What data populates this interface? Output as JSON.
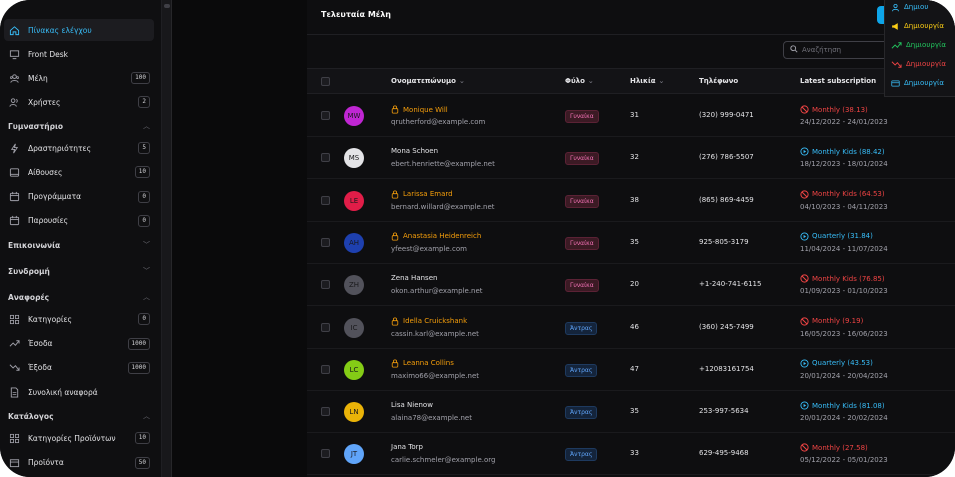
{
  "sidebar": {
    "items": [
      {
        "label": "Πίνακας ελέγχου",
        "icon": "home-icon",
        "active": true,
        "top": 19
      },
      {
        "label": "Front Desk",
        "icon": "monitor-icon",
        "top": 43
      },
      {
        "label": "Μέλη",
        "icon": "members-icon",
        "badge": "100",
        "top": 67
      },
      {
        "label": "Χρήστες",
        "icon": "users-icon",
        "badge": "2",
        "top": 91
      }
    ],
    "sections": [
      {
        "label": "Γυμναστήριο",
        "chevron": "up",
        "items": [
          {
            "label": "Δραστηριότητες",
            "icon": "activity-icon",
            "badge": "5"
          },
          {
            "label": "Αίθουσες",
            "icon": "room-icon",
            "badge": "10"
          },
          {
            "label": "Προγράμματα",
            "icon": "calendar-icon",
            "badge": "0"
          },
          {
            "label": "Παρουσίες",
            "icon": "calendar-icon",
            "badge": "0"
          }
        ]
      },
      {
        "label": "Επικοινωνία",
        "chevron": "down",
        "items": []
      },
      {
        "label": "Συνδρομή",
        "chevron": "down",
        "items": []
      },
      {
        "label": "Αναφορές",
        "chevron": "up",
        "items": [
          {
            "label": "Κατηγορίες",
            "icon": "grid-icon",
            "badge": "0"
          },
          {
            "label": "Έσοδα",
            "icon": "trend-up-icon",
            "badge": "1000"
          },
          {
            "label": "Έξοδα",
            "icon": "trend-down-icon",
            "badge": "1000"
          },
          {
            "label": "Συνολική αναφορά",
            "icon": "report-icon"
          }
        ]
      },
      {
        "label": "Κατάλογος",
        "chevron": "up",
        "items": [
          {
            "label": "Κατηγορίες Προϊόντων",
            "icon": "grid-icon",
            "badge": "10"
          },
          {
            "label": "Προϊόντα",
            "icon": "box-icon",
            "badge": "50"
          }
        ]
      }
    ]
  },
  "main": {
    "title": "Τελευταία Μέλη",
    "search_placeholder": "Αναζήτηση"
  },
  "table": {
    "headers": {
      "name": "Ονοματεπώνυμο",
      "gender": "Φύλο",
      "age": "Ηλικία",
      "phone": "Τηλέφωνο",
      "subscription": "Latest subscription"
    },
    "rows": [
      {
        "initials": "MW",
        "avatar_color": "#c026d3",
        "name": "Monique Will",
        "locked": true,
        "email": "qrutherford@example.com",
        "gender": "Γυναίκα",
        "g": "f",
        "age": "31",
        "phone": "(320) 999-0471",
        "sub": "Monthly (38.13)",
        "sub_status": "expired",
        "dates": "24/12/2022 - 24/01/2023"
      },
      {
        "initials": "MS",
        "avatar_color": "#e4e4e7",
        "name": "Mona Schoen",
        "locked": false,
        "email": "ebert.henriette@example.net",
        "gender": "Γυναίκα",
        "g": "f",
        "age": "32",
        "phone": "(276) 786-5507",
        "sub": "Monthly Kids (88.42)",
        "sub_status": "active",
        "dates": "18/12/2023 - 18/01/2024"
      },
      {
        "initials": "LE",
        "avatar_color": "#e11d48",
        "name": "Larissa Emard",
        "locked": true,
        "email": "bernard.willard@example.net",
        "gender": "Γυναίκα",
        "g": "f",
        "age": "38",
        "phone": "(865) 869-4459",
        "sub": "Monthly Kids (64.53)",
        "sub_status": "expired",
        "dates": "04/10/2023 - 04/11/2023"
      },
      {
        "initials": "AH",
        "avatar_color": "#1e40af",
        "name": "Anastasia Heidenreich",
        "locked": true,
        "email": "yfeest@example.com",
        "gender": "Γυναίκα",
        "g": "f",
        "age": "35",
        "phone": "925-805-3179",
        "sub": "Quarterly (31.84)",
        "sub_status": "active",
        "dates": "11/04/2024 - 11/07/2024"
      },
      {
        "initials": "ZH",
        "avatar_color": "#52525b",
        "name": "Zena Hansen",
        "locked": false,
        "email": "okon.arthur@example.net",
        "gender": "Γυναίκα",
        "g": "f",
        "age": "20",
        "phone": "+1-240-741-6115",
        "sub": "Monthly Kids (76.85)",
        "sub_status": "expired",
        "dates": "01/09/2023 - 01/10/2023"
      },
      {
        "initials": "IC",
        "avatar_color": "#52525b",
        "name": "Idella Cruickshank",
        "locked": true,
        "email": "cassin.karl@example.net",
        "gender": "Άντρας",
        "g": "m",
        "age": "46",
        "phone": "(360) 245-7499",
        "sub": "Monthly (9.19)",
        "sub_status": "expired",
        "dates": "16/05/2023 - 16/06/2023"
      },
      {
        "initials": "LC",
        "avatar_color": "#84cc16",
        "name": "Leanna Collins",
        "locked": true,
        "email": "maximo66@example.net",
        "gender": "Άντρας",
        "g": "m",
        "age": "47",
        "phone": "+12083161754",
        "sub": "Quarterly (43.53)",
        "sub_status": "active",
        "dates": "20/01/2024 - 20/04/2024"
      },
      {
        "initials": "LN",
        "avatar_color": "#eab308",
        "name": "Lisa Nienow",
        "locked": false,
        "email": "alaina78@example.net",
        "gender": "Άντρας",
        "g": "m",
        "age": "35",
        "phone": "253-997-5634",
        "sub": "Monthly Kids (81.08)",
        "sub_status": "active",
        "dates": "20/01/2024 - 20/02/2024"
      },
      {
        "initials": "JT",
        "avatar_color": "#60a5fa",
        "name": "Jana Torp",
        "locked": false,
        "email": "carlie.schmeler@example.org",
        "gender": "Άντρας",
        "g": "m",
        "age": "33",
        "phone": "629-495-9468",
        "sub": "Monthly (27.58)",
        "sub_status": "expired",
        "dates": "05/12/2022 - 05/01/2023"
      }
    ]
  },
  "dropdown": {
    "items": [
      {
        "label": "Δημιου",
        "icon": "user-icon",
        "color": "#38bdf8"
      },
      {
        "label": "Δημιουργία",
        "icon": "megaphone-icon",
        "color": "#facc15"
      },
      {
        "label": "Δημιουργία",
        "icon": "trend-up-icon",
        "color": "#22c55e"
      },
      {
        "label": "Δημιουργία",
        "icon": "trend-down-icon",
        "color": "#ef4444"
      },
      {
        "label": "Δημιουργία",
        "icon": "card-icon",
        "color": "#38bdf8"
      }
    ]
  },
  "colors": {
    "accent": "#38bdf8",
    "expired": "#ef4444",
    "warning": "#f59e0b"
  }
}
